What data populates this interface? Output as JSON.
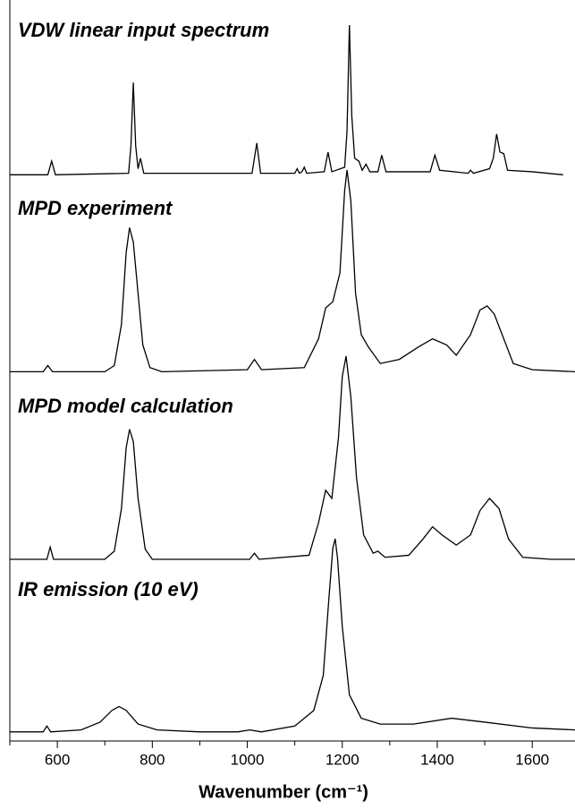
{
  "chart_data": [
    {
      "type": "line",
      "title": "VDW linear input spectrum",
      "color": "#000000",
      "xlim": [
        500,
        1690
      ],
      "ylim": [
        0,
        1
      ],
      "x": [
        500,
        580,
        588,
        596,
        750,
        755,
        760,
        765,
        770,
        775,
        782,
        1010,
        1020,
        1028,
        1100,
        1105,
        1110,
        1115,
        1120,
        1125,
        1162,
        1170,
        1178,
        1205,
        1210,
        1215,
        1220,
        1226,
        1235,
        1242,
        1250,
        1258,
        1275,
        1283,
        1292,
        1385,
        1395,
        1405,
        1465,
        1470,
        1476,
        1510,
        1518,
        1525,
        1532,
        1540,
        1548,
        1600,
        1665
      ],
      "values": [
        0.01,
        0.01,
        0.1,
        0.01,
        0.02,
        0.2,
        0.62,
        0.2,
        0.05,
        0.12,
        0.02,
        0.02,
        0.22,
        0.02,
        0.02,
        0.05,
        0.02,
        0.03,
        0.06,
        0.02,
        0.03,
        0.16,
        0.03,
        0.06,
        0.3,
        1.0,
        0.4,
        0.12,
        0.1,
        0.04,
        0.08,
        0.03,
        0.03,
        0.14,
        0.03,
        0.03,
        0.14,
        0.04,
        0.02,
        0.04,
        0.02,
        0.05,
        0.12,
        0.28,
        0.16,
        0.15,
        0.04,
        0.03,
        0.01
      ]
    },
    {
      "type": "line",
      "title": "MPD experiment",
      "color": "#000000",
      "xlim": [
        500,
        1690
      ],
      "ylim": [
        0,
        1
      ],
      "x": [
        500,
        570,
        580,
        590,
        700,
        720,
        735,
        745,
        752,
        760,
        770,
        780,
        795,
        820,
        1000,
        1015,
        1030,
        1120,
        1150,
        1165,
        1180,
        1195,
        1205,
        1210,
        1218,
        1228,
        1240,
        1255,
        1280,
        1320,
        1360,
        1390,
        1420,
        1440,
        1470,
        1490,
        1505,
        1520,
        1540,
        1560,
        1600,
        1690
      ],
      "values": [
        0.02,
        0.02,
        0.05,
        0.02,
        0.02,
        0.05,
        0.25,
        0.6,
        0.72,
        0.65,
        0.4,
        0.15,
        0.04,
        0.02,
        0.03,
        0.08,
        0.03,
        0.04,
        0.18,
        0.33,
        0.36,
        0.5,
        0.9,
        1.0,
        0.85,
        0.4,
        0.2,
        0.14,
        0.06,
        0.08,
        0.14,
        0.18,
        0.15,
        0.1,
        0.2,
        0.32,
        0.34,
        0.3,
        0.18,
        0.06,
        0.03,
        0.02
      ]
    },
    {
      "type": "line",
      "title": "MPD model calculation",
      "color": "#000000",
      "xlim": [
        500,
        1690
      ],
      "ylim": [
        0,
        1
      ],
      "x": [
        500,
        578,
        585,
        592,
        700,
        720,
        735,
        745,
        752,
        760,
        770,
        785,
        800,
        1005,
        1015,
        1025,
        1130,
        1150,
        1165,
        1178,
        1192,
        1200,
        1208,
        1218,
        1230,
        1245,
        1265,
        1275,
        1290,
        1340,
        1370,
        1390,
        1410,
        1440,
        1470,
        1490,
        1510,
        1530,
        1550,
        1580,
        1640,
        1690
      ],
      "values": [
        0,
        0,
        0.06,
        0,
        0,
        0.04,
        0.25,
        0.55,
        0.64,
        0.58,
        0.3,
        0.05,
        0,
        0,
        0.03,
        0,
        0.02,
        0.18,
        0.34,
        0.3,
        0.6,
        0.9,
        1.0,
        0.8,
        0.4,
        0.12,
        0.03,
        0.04,
        0.01,
        0.02,
        0.1,
        0.16,
        0.12,
        0.07,
        0.12,
        0.24,
        0.3,
        0.25,
        0.1,
        0.01,
        0,
        0
      ]
    },
    {
      "type": "line",
      "title": "IR emission (10 eV)",
      "color": "#000000",
      "xlim": [
        500,
        1690
      ],
      "ylim": [
        0,
        1
      ],
      "x": [
        500,
        570,
        578,
        586,
        650,
        690,
        715,
        730,
        745,
        770,
        810,
        900,
        980,
        1005,
        1030,
        1100,
        1140,
        1160,
        1172,
        1180,
        1185,
        1190,
        1200,
        1215,
        1240,
        1280,
        1350,
        1430,
        1500,
        1600,
        1690
      ],
      "values": [
        0.01,
        0.01,
        0.04,
        0.01,
        0.02,
        0.06,
        0.12,
        0.14,
        0.12,
        0.05,
        0.02,
        0.01,
        0.01,
        0.02,
        0.01,
        0.04,
        0.12,
        0.3,
        0.7,
        0.95,
        1.0,
        0.9,
        0.55,
        0.2,
        0.08,
        0.05,
        0.05,
        0.08,
        0.06,
        0.03,
        0.02
      ],
      "xlabel": "Wavenumber (cm⁻¹)",
      "xticks": [
        600,
        800,
        1000,
        1200,
        1400,
        1600
      ],
      "xminorticks": [
        500,
        700,
        900,
        1100,
        1300,
        1500
      ]
    }
  ]
}
